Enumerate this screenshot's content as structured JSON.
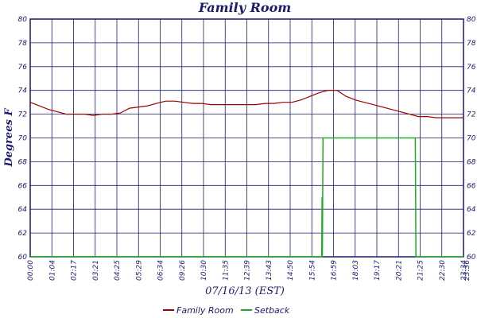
{
  "chart_data": {
    "type": "line",
    "title": "Family Room",
    "xlabel": "07/16/13 (EST)",
    "ylabel": "Degrees F",
    "ylim": [
      60,
      80
    ],
    "y_ticks": [
      60,
      62,
      64,
      66,
      68,
      70,
      72,
      74,
      76,
      78,
      80
    ],
    "x_range_minutes": [
      0,
      1440
    ],
    "x_tick_labels": [
      "00:00",
      "01:04",
      "02:17",
      "03:21",
      "04:25",
      "05:29",
      "06:34",
      "09:26",
      "10:30",
      "11:35",
      "12:39",
      "13:43",
      "14:50",
      "15:54",
      "16:59",
      "18:03",
      "19:17",
      "20:21",
      "21:25",
      "22:30",
      "23:34",
      "23:36"
    ],
    "grid": true,
    "legend_position": "bottom",
    "series": [
      {
        "name": "Family Room",
        "color": "#990000",
        "x": [
          0,
          30,
          60,
          90,
          120,
          150,
          180,
          210,
          240,
          270,
          300,
          330,
          360,
          390,
          420,
          450,
          480,
          510,
          540,
          570,
          600,
          630,
          660,
          690,
          720,
          750,
          780,
          810,
          840,
          870,
          900,
          930,
          960,
          990,
          1020,
          1050,
          1080,
          1110,
          1140,
          1170,
          1200,
          1230,
          1260,
          1290,
          1320,
          1350,
          1380,
          1410,
          1440
        ],
        "y": [
          73.0,
          72.7,
          72.4,
          72.2,
          72.0,
          72.0,
          72.0,
          71.9,
          72.0,
          72.0,
          72.1,
          72.5,
          72.6,
          72.7,
          72.9,
          73.1,
          73.1,
          73.0,
          72.9,
          72.9,
          72.8,
          72.8,
          72.8,
          72.8,
          72.8,
          72.8,
          72.9,
          72.9,
          73.0,
          73.0,
          73.2,
          73.5,
          73.8,
          74.0,
          74.0,
          73.5,
          73.2,
          73.0,
          72.8,
          72.6,
          72.4,
          72.2,
          72.0,
          71.8,
          71.8,
          71.7,
          71.7,
          71.7,
          71.7
        ]
      },
      {
        "name": "Setback",
        "color": "#22aa22",
        "x": [
          0,
          969,
          970,
          971,
          973,
          974,
          1280,
          1282,
          1440
        ],
        "y": [
          60,
          60,
          65,
          60,
          70,
          70,
          70,
          60,
          60
        ]
      }
    ]
  }
}
